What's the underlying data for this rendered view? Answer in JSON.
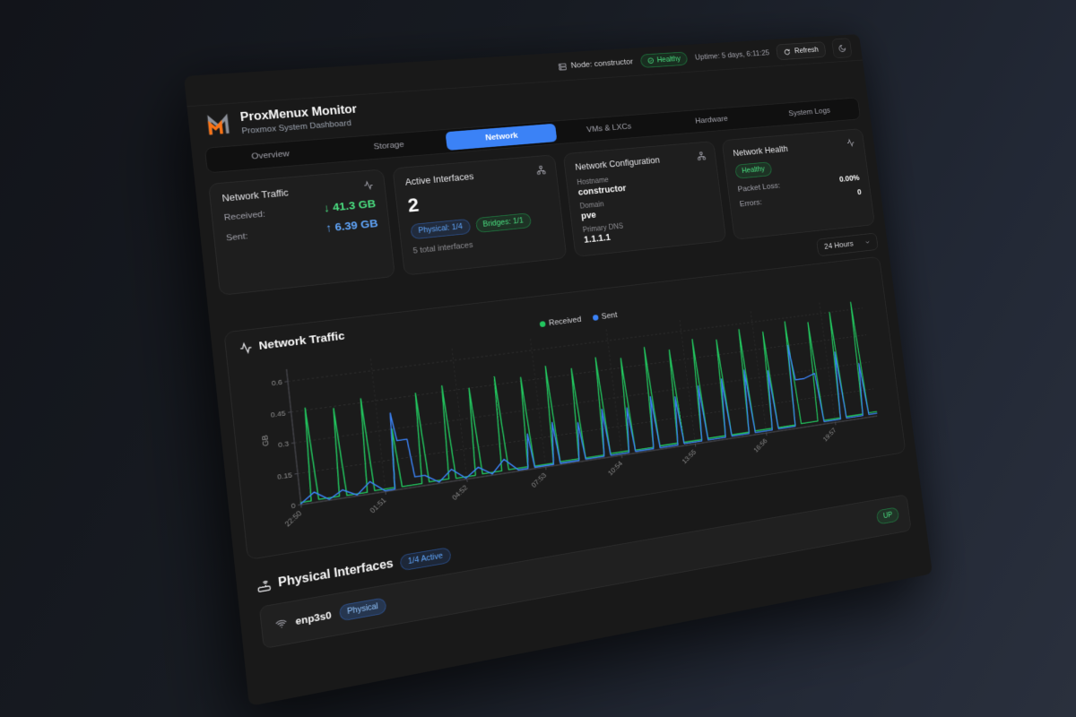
{
  "header": {
    "node_label": "Node: constructor",
    "health_badge": "Healthy",
    "uptime": "Uptime: 5 days, 6:11:25",
    "refresh_label": "Refresh"
  },
  "brand": {
    "title": "ProxMenux Monitor",
    "subtitle": "Proxmox System Dashboard"
  },
  "tabs": [
    {
      "label": "Overview",
      "active": false
    },
    {
      "label": "Storage",
      "active": false
    },
    {
      "label": "Network",
      "active": true
    },
    {
      "label": "VMs & LXCs",
      "active": false
    },
    {
      "label": "Hardware",
      "active": false
    },
    {
      "label": "System Logs",
      "active": false
    }
  ],
  "cards": {
    "traffic": {
      "title": "Network Traffic",
      "received_label": "Received:",
      "received_value": "↓ 41.3 GB",
      "sent_label": "Sent:",
      "sent_value": "↑ 6.39 GB"
    },
    "interfaces": {
      "title": "Active Interfaces",
      "count": "2",
      "physical_badge": "Physical: 1/4",
      "bridges_badge": "Bridges: 1/1",
      "total": "5 total interfaces"
    },
    "config": {
      "title": "Network Configuration",
      "hostname_label": "Hostname",
      "hostname": "constructor",
      "domain_label": "Domain",
      "domain": "pve",
      "dns_label": "Primary DNS",
      "dns": "1.1.1.1"
    },
    "health": {
      "title": "Network Health",
      "status": "Healthy",
      "packet_loss_label": "Packet Loss:",
      "packet_loss": "0.00%",
      "errors_label": "Errors:",
      "errors": "0"
    }
  },
  "time_range": {
    "selected": "24 Hours"
  },
  "colors": {
    "received": "#22c55e",
    "sent": "#3b82f6",
    "accent": "#3b82f6",
    "healthy": "#4ade80"
  },
  "chart_data": {
    "type": "line",
    "title": "Network Traffic",
    "ylabel": "GB",
    "ylim": [
      0,
      0.66
    ],
    "yticks": [
      0,
      0.15,
      0.3,
      0.45,
      0.6
    ],
    "xlim": [
      0,
      1380
    ],
    "xticks": [
      [
        0,
        "22:50"
      ],
      [
        181,
        "01:51"
      ],
      [
        362,
        "04:52"
      ],
      [
        543,
        "07:53"
      ],
      [
        724,
        "10:54"
      ],
      [
        905,
        "13:55"
      ],
      [
        1086,
        "16:56"
      ],
      [
        1267,
        "19:57"
      ]
    ],
    "grid": "dashed",
    "legend_position": "top-center",
    "series": [
      {
        "name": "Received",
        "color": "#22c55e",
        "col": 1
      },
      {
        "name": "Sent",
        "color": "#3b82f6",
        "col": 2
      }
    ],
    "points": [
      [
        0,
        0.01,
        0.004
      ],
      [
        30,
        0.46,
        0.05
      ],
      [
        60,
        0.012,
        0.004
      ],
      [
        90,
        0.44,
        0.04
      ],
      [
        120,
        0.01,
        0.005
      ],
      [
        150,
        0.47,
        0.06
      ],
      [
        180,
        0.013,
        0.005
      ],
      [
        210,
        0.3,
        0.38
      ],
      [
        240,
        0.012,
        0.24
      ],
      [
        270,
        0.46,
        0.05
      ],
      [
        300,
        0.015,
        0.006
      ],
      [
        330,
        0.48,
        0.06
      ],
      [
        360,
        0.012,
        0.005
      ],
      [
        390,
        0.45,
        0.05
      ],
      [
        420,
        0.014,
        0.006
      ],
      [
        450,
        0.49,
        0.07
      ],
      [
        480,
        0.015,
        0.006
      ],
      [
        510,
        0.47,
        0.18
      ],
      [
        540,
        0.013,
        0.007
      ],
      [
        570,
        0.51,
        0.22
      ],
      [
        600,
        0.016,
        0.007
      ],
      [
        630,
        0.48,
        0.2
      ],
      [
        660,
        0.015,
        0.008
      ],
      [
        690,
        0.52,
        0.25
      ],
      [
        720,
        0.017,
        0.008
      ],
      [
        750,
        0.5,
        0.24
      ],
      [
        780,
        0.016,
        0.009
      ],
      [
        810,
        0.54,
        0.28
      ],
      [
        840,
        0.018,
        0.009
      ],
      [
        870,
        0.51,
        0.26
      ],
      [
        900,
        0.017,
        0.01
      ],
      [
        930,
        0.55,
        0.3
      ],
      [
        960,
        0.019,
        0.01
      ],
      [
        990,
        0.53,
        0.32
      ],
      [
        1020,
        0.018,
        0.011
      ],
      [
        1050,
        0.57,
        0.35
      ],
      [
        1080,
        0.02,
        0.011
      ],
      [
        1110,
        0.54,
        0.33
      ],
      [
        1140,
        0.019,
        0.012
      ],
      [
        1170,
        0.58,
        0.45
      ],
      [
        1200,
        0.021,
        0.26
      ],
      [
        1230,
        0.56,
        0.28
      ],
      [
        1260,
        0.02,
        0.013
      ],
      [
        1290,
        0.6,
        0.38
      ],
      [
        1320,
        0.022,
        0.014
      ],
      [
        1350,
        0.64,
        0.3
      ],
      [
        1380,
        0.024,
        0.015
      ]
    ]
  },
  "physical_section": {
    "title": "Physical Interfaces",
    "badge": "1/4 Active",
    "rows": [
      {
        "name": "enp3s0",
        "type_badge": "Physical",
        "status_badge": "UP"
      }
    ]
  }
}
